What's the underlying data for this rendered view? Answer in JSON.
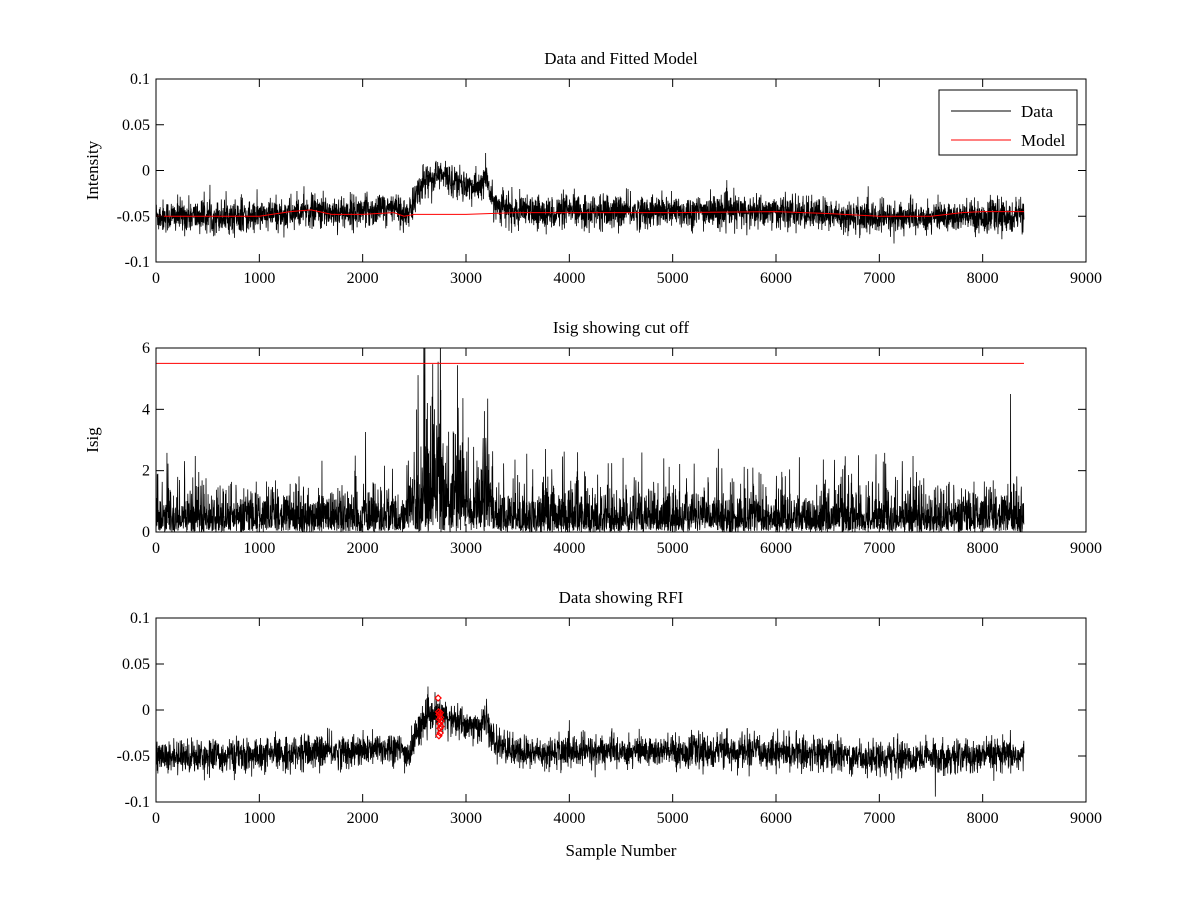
{
  "chart_data": [
    {
      "type": "line",
      "title": "Data and Fitted Model",
      "xlabel": "",
      "ylabel": "Intensity",
      "xlim": [
        0,
        9000
      ],
      "ylim": [
        -0.1,
        0.1
      ],
      "xticks": [
        "0",
        "1000",
        "2000",
        "3000",
        "4000",
        "5000",
        "6000",
        "7000",
        "8000",
        "9000"
      ],
      "yticks": [
        "-0.1",
        "-0.05",
        "0",
        "0.05",
        "0.1"
      ],
      "grid": false,
      "legend": {
        "placement": "top-right",
        "entries": [
          "Data",
          "Model"
        ]
      },
      "series": [
        {
          "name": "Data",
          "color": "#000000",
          "n_points": 8400,
          "baseline": [
            [
              0,
              -0.05
            ],
            [
              1000,
              -0.05
            ],
            [
              1500,
              -0.045
            ],
            [
              2000,
              -0.045
            ],
            [
              2300,
              -0.04
            ],
            [
              2450,
              -0.05
            ],
            [
              2520,
              -0.025
            ],
            [
              2600,
              -0.01
            ],
            [
              2750,
              -0.005
            ],
            [
              2900,
              -0.012
            ],
            [
              3100,
              -0.02
            ],
            [
              3200,
              -0.01
            ],
            [
              3260,
              -0.035
            ],
            [
              3500,
              -0.047
            ],
            [
              4000,
              -0.045
            ],
            [
              6000,
              -0.045
            ],
            [
              7000,
              -0.052
            ],
            [
              8000,
              -0.05
            ],
            [
              8400,
              -0.05
            ]
          ],
          "noise": 0.009
        },
        {
          "name": "Model",
          "color": "#ff0000",
          "points": [
            [
              0,
              -0.05
            ],
            [
              1000,
              -0.05
            ],
            [
              1300,
              -0.045
            ],
            [
              1500,
              -0.043
            ],
            [
              1700,
              -0.048
            ],
            [
              2000,
              -0.048
            ],
            [
              2300,
              -0.046
            ],
            [
              2400,
              -0.05
            ],
            [
              2500,
              -0.048
            ],
            [
              3000,
              -0.048
            ],
            [
              3500,
              -0.046
            ],
            [
              5000,
              -0.046
            ],
            [
              6000,
              -0.045
            ],
            [
              6500,
              -0.047
            ],
            [
              7000,
              -0.05
            ],
            [
              7500,
              -0.05
            ],
            [
              7800,
              -0.046
            ],
            [
              8000,
              -0.045
            ],
            [
              8400,
              -0.045
            ]
          ]
        }
      ]
    },
    {
      "type": "line",
      "title": "Isig showing cut off",
      "xlabel": "",
      "ylabel": "Isig",
      "xlim": [
        0,
        9000
      ],
      "ylim": [
        0,
        6
      ],
      "xticks": [
        "0",
        "1000",
        "2000",
        "3000",
        "4000",
        "5000",
        "6000",
        "7000",
        "8000",
        "9000"
      ],
      "yticks": [
        "0",
        "2",
        "4",
        "6"
      ],
      "grid": false,
      "series": [
        {
          "color": "#000000",
          "n_points": 8400,
          "kind": "abs-noise",
          "scale": [
            [
              0,
              0.8
            ],
            [
              2400,
              0.8
            ],
            [
              2550,
              2.2
            ],
            [
              2750,
              2.6
            ],
            [
              2900,
              2.0
            ],
            [
              3100,
              1.2
            ],
            [
              3200,
              2.2
            ],
            [
              3280,
              0.8
            ],
            [
              8400,
              0.8
            ]
          ],
          "spikes": [
            [
              2730,
              5.55
            ],
            [
              3210,
              4.35
            ],
            [
              8270,
              4.5
            ],
            [
              2600,
              4.4
            ]
          ]
        },
        {
          "color": "#ff0000",
          "points": [
            [
              0,
              5.5
            ],
            [
              8400,
              5.5
            ]
          ]
        }
      ]
    },
    {
      "type": "line",
      "title": "Data showing RFI",
      "xlabel": "Sample Number",
      "ylabel": "",
      "xlim": [
        0,
        9000
      ],
      "ylim": [
        -0.1,
        0.1
      ],
      "xticks": [
        "0",
        "1000",
        "2000",
        "3000",
        "4000",
        "5000",
        "6000",
        "7000",
        "8000",
        "9000"
      ],
      "yticks": [
        "-0.1",
        "-0.05",
        "0",
        "0.05",
        "0.1"
      ],
      "grid": false,
      "series": [
        {
          "color": "#000000",
          "n_points": 8400,
          "baseline": [
            [
              0,
              -0.05
            ],
            [
              1000,
              -0.05
            ],
            [
              1500,
              -0.045
            ],
            [
              2000,
              -0.045
            ],
            [
              2300,
              -0.04
            ],
            [
              2450,
              -0.05
            ],
            [
              2520,
              -0.025
            ],
            [
              2600,
              -0.01
            ],
            [
              2750,
              -0.005
            ],
            [
              2900,
              -0.012
            ],
            [
              3100,
              -0.02
            ],
            [
              3200,
              -0.01
            ],
            [
              3260,
              -0.035
            ],
            [
              3500,
              -0.047
            ],
            [
              4000,
              -0.045
            ],
            [
              6000,
              -0.045
            ],
            [
              7000,
              -0.052
            ],
            [
              8000,
              -0.05
            ],
            [
              8400,
              -0.05
            ]
          ],
          "noise": 0.009
        },
        {
          "type": "scatter",
          "color": "#ff0000",
          "points": [
            [
              2730,
              0.013
            ],
            [
              2735,
              -0.002
            ],
            [
              2740,
              -0.005
            ],
            [
              2742,
              -0.01
            ],
            [
              2745,
              -0.015
            ],
            [
              2748,
              -0.02
            ],
            [
              2750,
              -0.025
            ],
            [
              2752,
              -0.003
            ],
            [
              2755,
              -0.008
            ],
            [
              2758,
              -0.018
            ],
            [
              2760,
              -0.012
            ],
            [
              2738,
              -0.028
            ]
          ]
        }
      ]
    }
  ]
}
